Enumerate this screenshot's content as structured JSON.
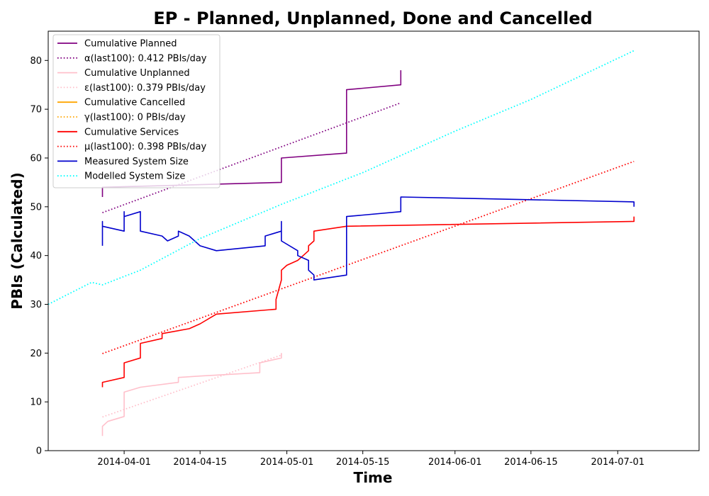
{
  "chart_data": {
    "type": "line",
    "title": "EP - Planned, Unplanned, Done  and Cancelled",
    "xlabel": "Time",
    "ylabel": "PBIs (Calculated)",
    "xlim": [
      "2014-03-18",
      "2014-07-16"
    ],
    "ylim": [
      0,
      86
    ],
    "x_ticks": [
      "2014-04-01",
      "2014-04-15",
      "2014-05-01",
      "2014-05-15",
      "2014-06-01",
      "2014-06-15",
      "2014-07-01"
    ],
    "y_ticks": [
      0,
      10,
      20,
      30,
      40,
      50,
      60,
      70,
      80
    ],
    "grid": false,
    "legend_position": "upper-left",
    "series": [
      {
        "name": "Cumulative Planned",
        "color": "#800080",
        "style": "solid",
        "points": [
          [
            "2014-03-28",
            52
          ],
          [
            "2014-03-28",
            54
          ],
          [
            "2014-04-30",
            55
          ],
          [
            "2014-04-30",
            57.5
          ],
          [
            "2014-04-30",
            60
          ],
          [
            "2014-05-12",
            61
          ],
          [
            "2014-05-12",
            74
          ],
          [
            "2014-05-22",
            75
          ],
          [
            "2014-05-22",
            77
          ],
          [
            "2014-05-22",
            78
          ]
        ]
      },
      {
        "name": "α(last100): 0.412 PBIs/day",
        "color": "#800080",
        "style": "dotted",
        "points": [
          [
            "2014-03-28",
            48.8
          ],
          [
            "2014-05-22",
            71.3
          ]
        ]
      },
      {
        "name": "Cumulative Unplanned",
        "color": "#ffc0cb",
        "style": "solid",
        "points": [
          [
            "2014-03-28",
            3
          ],
          [
            "2014-03-28",
            5
          ],
          [
            "2014-03-29",
            6
          ],
          [
            "2014-04-01",
            7
          ],
          [
            "2014-04-01",
            12
          ],
          [
            "2014-04-04",
            13
          ],
          [
            "2014-04-11",
            14
          ],
          [
            "2014-04-11",
            15
          ],
          [
            "2014-04-15",
            15.3
          ],
          [
            "2014-04-26",
            16
          ],
          [
            "2014-04-26",
            18
          ],
          [
            "2014-04-30",
            19
          ],
          [
            "2014-04-30",
            20
          ]
        ]
      },
      {
        "name": "ε(last100): 0.379 PBIs/day",
        "color": "#ffc0cb",
        "style": "dotted",
        "points": [
          [
            "2014-03-28",
            6.9
          ],
          [
            "2014-04-30",
            19.6
          ]
        ]
      },
      {
        "name": "Cumulative Cancelled",
        "color": "#ffa500",
        "style": "solid",
        "points": []
      },
      {
        "name": "γ(last100): 0 PBIs/day",
        "color": "#ffa500",
        "style": "dotted",
        "points": []
      },
      {
        "name": "Cumulative Services",
        "color": "#ff0000",
        "style": "solid",
        "points": [
          [
            "2014-03-28",
            13
          ],
          [
            "2014-03-28",
            14
          ],
          [
            "2014-04-01",
            15
          ],
          [
            "2014-04-01",
            16
          ],
          [
            "2014-04-01",
            18
          ],
          [
            "2014-04-04",
            19
          ],
          [
            "2014-04-04",
            22
          ],
          [
            "2014-04-08",
            23
          ],
          [
            "2014-04-08",
            24
          ],
          [
            "2014-04-13",
            25
          ],
          [
            "2014-04-15",
            26
          ],
          [
            "2014-04-18",
            28
          ],
          [
            "2014-04-29",
            29
          ],
          [
            "2014-04-29",
            31
          ],
          [
            "2014-04-30",
            35
          ],
          [
            "2014-04-30",
            37
          ],
          [
            "2014-05-01",
            38
          ],
          [
            "2014-05-03",
            39
          ],
          [
            "2014-05-04",
            40
          ],
          [
            "2014-05-05",
            41
          ],
          [
            "2014-05-05",
            42
          ],
          [
            "2014-05-06",
            43
          ],
          [
            "2014-05-06",
            45
          ],
          [
            "2014-05-12",
            46
          ],
          [
            "2014-07-04",
            47
          ],
          [
            "2014-07-04",
            48
          ]
        ]
      },
      {
        "name": "μ(last100): 0.398 PBIs/day",
        "color": "#ff0000",
        "style": "dotted",
        "points": [
          [
            "2014-03-28",
            19.9
          ],
          [
            "2014-07-04",
            59.3
          ]
        ]
      },
      {
        "name": "Measured System Size",
        "color": "#0000cd",
        "style": "solid",
        "points": [
          [
            "2014-03-28",
            42
          ],
          [
            "2014-03-28",
            47
          ],
          [
            "2014-03-28",
            46
          ],
          [
            "2014-04-01",
            45
          ],
          [
            "2014-04-01",
            49
          ],
          [
            "2014-04-01",
            46
          ],
          [
            "2014-04-01",
            48
          ],
          [
            "2014-04-04",
            49
          ],
          [
            "2014-04-04",
            45
          ],
          [
            "2014-04-08",
            44
          ],
          [
            "2014-04-09",
            43
          ],
          [
            "2014-04-11",
            44
          ],
          [
            "2014-04-11",
            45
          ],
          [
            "2014-04-13",
            44
          ],
          [
            "2014-04-15",
            42
          ],
          [
            "2014-04-18",
            41
          ],
          [
            "2014-04-27",
            42
          ],
          [
            "2014-04-27",
            44
          ],
          [
            "2014-04-30",
            45
          ],
          [
            "2014-04-30",
            47
          ],
          [
            "2014-04-30",
            43
          ],
          [
            "2014-05-03",
            41
          ],
          [
            "2014-05-03",
            40
          ],
          [
            "2014-05-05",
            39
          ],
          [
            "2014-05-05",
            37
          ],
          [
            "2014-05-06",
            36
          ],
          [
            "2014-05-06",
            35
          ],
          [
            "2014-05-12",
            36
          ],
          [
            "2014-05-12",
            48
          ],
          [
            "2014-05-22",
            49
          ],
          [
            "2014-05-22",
            52
          ],
          [
            "2014-07-04",
            51
          ],
          [
            "2014-07-04",
            50
          ]
        ]
      },
      {
        "name": "Modelled System Size",
        "color": "#00ffff",
        "style": "dotted",
        "points": [
          [
            "2014-03-18",
            30
          ],
          [
            "2014-03-26",
            34.5
          ],
          [
            "2014-03-28",
            34
          ],
          [
            "2014-04-04",
            37
          ],
          [
            "2014-04-15",
            43.5
          ],
          [
            "2014-04-30",
            50.5
          ],
          [
            "2014-05-15",
            57
          ],
          [
            "2014-06-01",
            65.5
          ],
          [
            "2014-06-15",
            72
          ],
          [
            "2014-07-04",
            82
          ]
        ]
      }
    ]
  }
}
